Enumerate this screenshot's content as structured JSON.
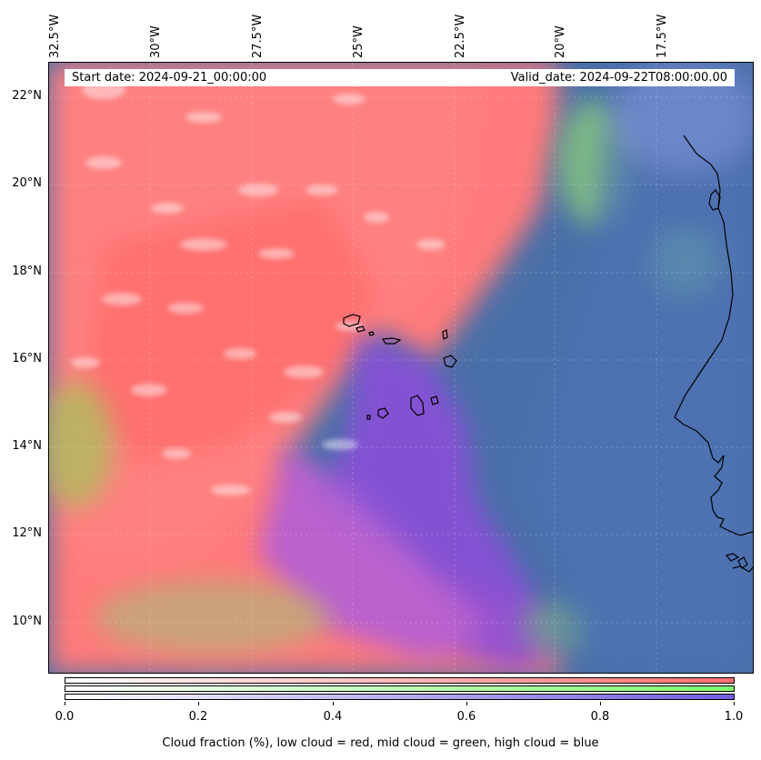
{
  "header": {
    "start_date": "Start date: 2024-09-21_00:00:00",
    "valid_date": "Valid_date: 2024-09-22T08:00:00.00"
  },
  "axes": {
    "lon_labels": [
      "32.5°W",
      "30°W",
      "27.5°W",
      "25°W",
      "22.5°W",
      "20°W",
      "17.5°W"
    ],
    "lat_labels": [
      "22°N",
      "20°N",
      "18°N",
      "16°N",
      "14°N",
      "12°N",
      "10°N"
    ]
  },
  "colorbar": {
    "ticks": [
      "0.0",
      "0.2",
      "0.4",
      "0.6",
      "0.8",
      "1.0"
    ],
    "title": "Cloud fraction (%), low cloud = red, mid cloud = green, high cloud = blue",
    "low_color": "#ff7070",
    "mid_color": "#80ff70",
    "high_color": "#6f5ee0"
  },
  "map": {
    "ocean_clear_color": "#4a6fa8",
    "land_outline_color": "#000000"
  }
}
